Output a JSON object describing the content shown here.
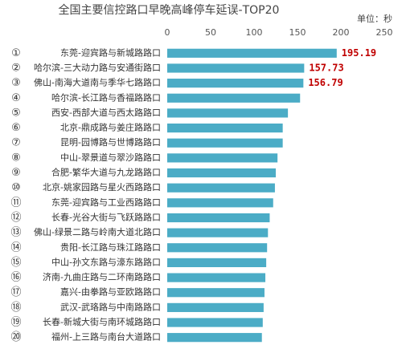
{
  "chart_data": {
    "type": "barh",
    "title": "全国主要信控路口早晚高峰停车延误-TOP20",
    "unit_label": "单位：秒",
    "ranks": [
      "①",
      "②",
      "③",
      "④",
      "⑤",
      "⑥",
      "⑦",
      "⑧",
      "⑨",
      "⑩",
      "⑪",
      "⑫",
      "⑬",
      "⑭",
      "⑮",
      "⑯",
      "⑰",
      "⑱",
      "⑲",
      "⑳"
    ],
    "categories": [
      "东莞-迎宾路与新城路路口",
      "哈尔滨-三大动力路与安通街路口",
      "佛山-南海大道南与季华七路路口",
      "哈尔滨-长江路与香福路路口",
      "西安-西部大道与西太路路口",
      "北京-鼎成路与姜庄路路口",
      "昆明-园博路与世博路路口",
      "中山-翠景道与翠沙路路口",
      "合肥-繁华大道与九龙路路口",
      "北京-姚家园路与星火西路路口",
      "东莞-迎宾路与工业西路路口",
      "长春-光谷大街与飞跃路路口",
      "佛山-绿景二路与岭南大道北路口",
      "贵阳-长江路与珠江路路口",
      "中山-孙文东路与濠东路路口",
      "济南-九曲庄路与二环南路路口",
      "嘉兴-由拳路与亚欧路路口",
      "武汉-武珞路与中南路路口",
      "长春-新城大街与南环城路路口",
      "福州-上三路与南台大道路口"
    ],
    "values": [
      195.19,
      157.73,
      156.79,
      153,
      139,
      133,
      133,
      127,
      125,
      124,
      122,
      118,
      116,
      115,
      114,
      113,
      112,
      111,
      110,
      109
    ],
    "value_labels": [
      "195.19",
      "157.73",
      "156.79",
      null,
      null,
      null,
      null,
      null,
      null,
      null,
      null,
      null,
      null,
      null,
      null,
      null,
      null,
      null,
      null,
      null
    ],
    "color": "#4bacc6",
    "label_color": "#c00000",
    "xlim": [
      0,
      250
    ],
    "xticks": [
      0,
      50,
      100,
      150,
      200,
      250
    ],
    "grid": false
  }
}
